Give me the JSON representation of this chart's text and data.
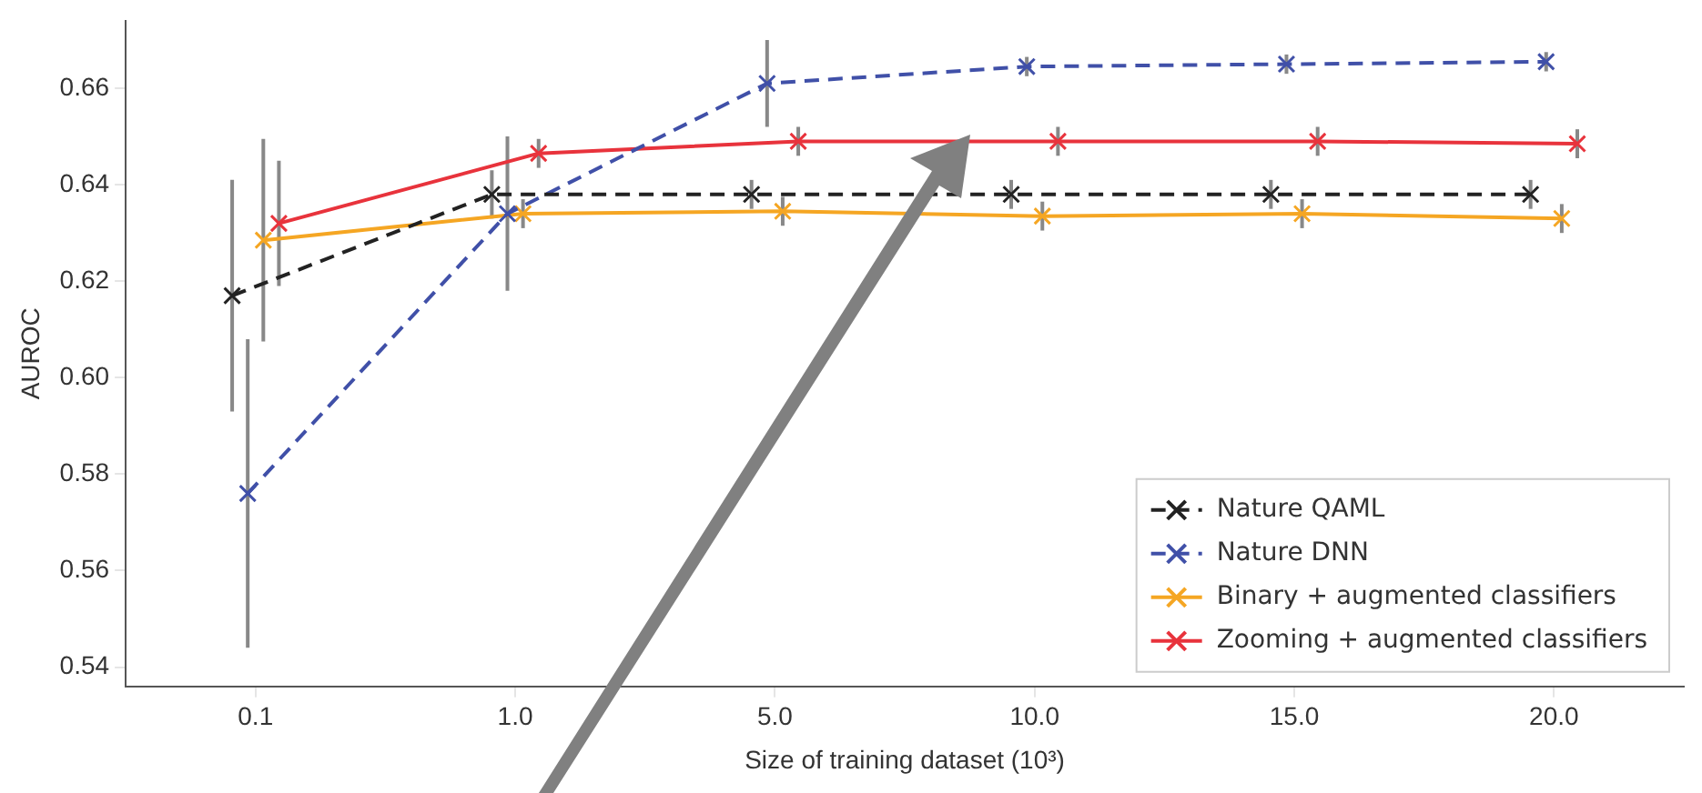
{
  "chart_data": {
    "type": "line",
    "xlabel": "Size of training dataset (10³)",
    "ylabel": "AUROC",
    "categories": [
      "0.1",
      "1.0",
      "5.0",
      "10.0",
      "15.0",
      "20.0"
    ],
    "series": [
      {
        "name": "Nature QAML",
        "color": "#222222",
        "line_style": "dashed",
        "values": [
          0.617,
          0.638,
          0.638,
          0.638,
          0.638,
          0.638
        ],
        "errors": [
          0.024,
          0.005,
          0.003,
          0.003,
          0.003,
          0.003
        ]
      },
      {
        "name": "Nature DNN",
        "color": "#4050a8",
        "line_style": "dashed",
        "values": [
          0.576,
          0.634,
          0.661,
          0.6645,
          0.665,
          0.6655
        ],
        "errors": [
          0.032,
          0.016,
          0.009,
          0.002,
          0.002,
          0.002
        ]
      },
      {
        "name": "Binary + augmented classifiers",
        "color": "#f5a623",
        "line_style": "solid",
        "values": [
          0.6285,
          0.634,
          0.6345,
          0.6335,
          0.634,
          0.633
        ],
        "errors": [
          0.021,
          0.003,
          0.003,
          0.003,
          0.003,
          0.003
        ]
      },
      {
        "name": "Zooming + augmented classifiers",
        "color": "#e8333c",
        "line_style": "solid",
        "values": [
          0.632,
          0.6465,
          0.649,
          0.649,
          0.649,
          0.6485
        ],
        "errors": [
          0.013,
          0.003,
          0.003,
          0.003,
          0.003,
          0.003
        ]
      }
    ],
    "ylim": [
      0.536,
      0.674
    ],
    "yticks": [
      0.54,
      0.56,
      0.58,
      {
        "value": 0.6,
        "label": "0.60"
      },
      0.62,
      0.64,
      0.66
    ],
    "grid": false,
    "legend": "bottom right",
    "marker": "cross"
  }
}
